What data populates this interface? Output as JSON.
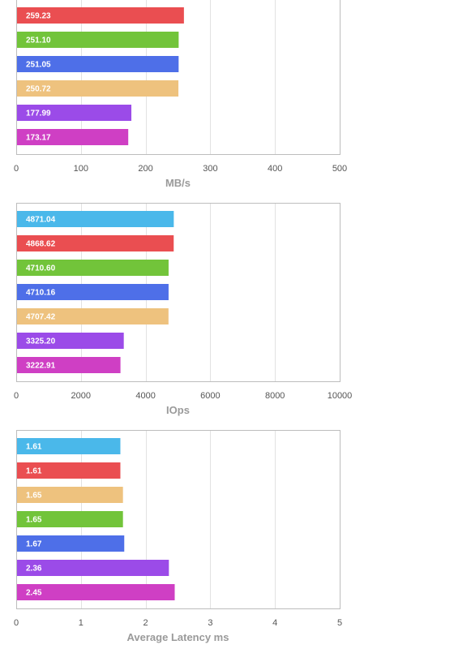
{
  "colors": {
    "cyan": "#4ab8ea",
    "red": "#ea4e51",
    "green": "#72c43a",
    "blue": "#4e6fe8",
    "tan": "#eec27e",
    "purple": "#9b4be8",
    "magenta": "#cf3fc4",
    "grid": "#e2e2e2",
    "frame": "#bdbdbd",
    "axis_label": "#9a9a9a",
    "tick_label": "#555555"
  },
  "chart_data": [
    {
      "type": "bar",
      "orientation": "horizontal",
      "xlabel": "MB/s",
      "xlim": [
        0,
        500
      ],
      "xticks": [
        "0",
        "100",
        "200",
        "300",
        "400",
        "500"
      ],
      "grid": true,
      "bars": [
        {
          "value": 259.23,
          "label": "259.23",
          "color": "red"
        },
        {
          "value": 251.1,
          "label": "251.10",
          "color": "green"
        },
        {
          "value": 251.05,
          "label": "251.05",
          "color": "blue"
        },
        {
          "value": 250.72,
          "label": "250.72",
          "color": "tan"
        },
        {
          "value": 177.99,
          "label": "177.99",
          "color": "purple"
        },
        {
          "value": 173.17,
          "label": "173.17",
          "color": "magenta"
        }
      ]
    },
    {
      "type": "bar",
      "orientation": "horizontal",
      "xlabel": "IOps",
      "xlim": [
        0,
        10000
      ],
      "xticks": [
        "0",
        "2000",
        "4000",
        "6000",
        "8000",
        "10000"
      ],
      "grid": true,
      "bars": [
        {
          "value": 4871.04,
          "label": "4871.04",
          "color": "cyan"
        },
        {
          "value": 4868.62,
          "label": "4868.62",
          "color": "red"
        },
        {
          "value": 4710.6,
          "label": "4710.60",
          "color": "green"
        },
        {
          "value": 4710.16,
          "label": "4710.16",
          "color": "blue"
        },
        {
          "value": 4707.42,
          "label": "4707.42",
          "color": "tan"
        },
        {
          "value": 3325.2,
          "label": "3325.20",
          "color": "purple"
        },
        {
          "value": 3222.91,
          "label": "3222.91",
          "color": "magenta"
        }
      ]
    },
    {
      "type": "bar",
      "orientation": "horizontal",
      "xlabel": "Average Latency ms",
      "xlim": [
        0,
        5
      ],
      "xticks": [
        "0",
        "1",
        "2",
        "3",
        "4",
        "5"
      ],
      "grid": true,
      "bars": [
        {
          "value": 1.61,
          "label": "1.61",
          "color": "cyan"
        },
        {
          "value": 1.61,
          "label": "1.61",
          "color": "red"
        },
        {
          "value": 1.65,
          "label": "1.65",
          "color": "tan"
        },
        {
          "value": 1.65,
          "label": "1.65",
          "color": "green"
        },
        {
          "value": 1.67,
          "label": "1.67",
          "color": "blue"
        },
        {
          "value": 2.36,
          "label": "2.36",
          "color": "purple"
        },
        {
          "value": 2.45,
          "label": "2.45",
          "color": "magenta"
        }
      ]
    }
  ]
}
